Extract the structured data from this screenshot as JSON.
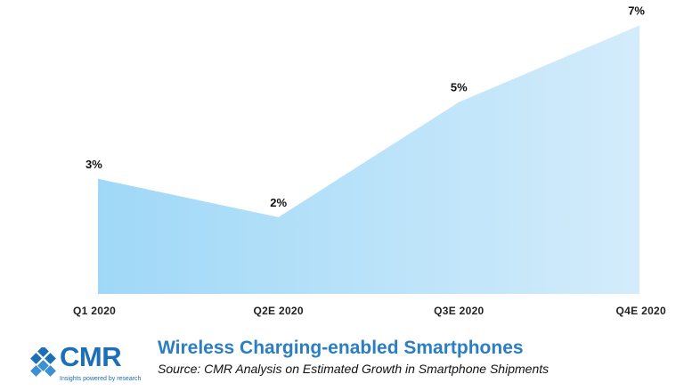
{
  "chart_data": {
    "type": "area",
    "categories": [
      "Q1 2020",
      "Q2E 2020",
      "Q3E 2020",
      "Q4E 2020"
    ],
    "values": [
      3,
      2,
      5,
      7
    ],
    "data_labels": [
      "3%",
      "2%",
      "5%",
      "7%"
    ],
    "unit": "%",
    "ylim": [
      0,
      7.5
    ],
    "grid": false,
    "legend": "none",
    "colors": {
      "fill_start": "#9fd8f7",
      "fill_end": "#d3ecfb"
    }
  },
  "footer": {
    "logo_text": "CMR",
    "logo_tagline": "Insights powered by research",
    "title": "Wireless Charging-enabled Smartphones",
    "source": "Source:  CMR Analysis on Estimated Growth in Smartphone Shipments",
    "colors": {
      "brand_blue": "#1a6fb8",
      "title_blue": "#2b7ec1"
    }
  }
}
